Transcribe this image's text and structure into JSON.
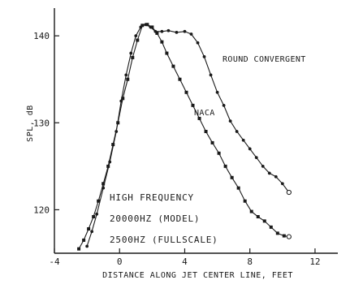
{
  "chart_data": {
    "type": "line",
    "xlabel": "DISTANCE ALONG JET CENTER LINE, FEET",
    "ylabel": "SPL, dB",
    "xlim": [
      -4,
      13
    ],
    "ylim": [
      115,
      143
    ],
    "x_ticks": [
      -4,
      0,
      4,
      8,
      12
    ],
    "y_ticks": [
      120,
      130,
      140
    ],
    "grid": false,
    "annotations": [
      "HIGH FREQUENCY",
      "20000HZ (MODEL)",
      "2500HZ (FULLSCALE)"
    ],
    "series": [
      {
        "name": "ROUND CONVERGENT",
        "marker": "circle",
        "x": [
          -2.0,
          -1.7,
          -1.4,
          -1.0,
          -0.6,
          -0.2,
          0.1,
          0.4,
          0.7,
          1.0,
          1.3,
          1.6,
          1.9,
          2.2,
          2.6,
          3.0,
          3.5,
          4.0,
          4.4,
          4.8,
          5.2,
          5.6,
          6.0,
          6.4,
          6.8,
          7.2,
          7.6,
          8.0,
          8.4,
          8.8,
          9.2,
          9.6,
          10.0,
          10.4
        ],
        "y": [
          115.8,
          117.5,
          119.5,
          122.5,
          125.5,
          129.0,
          132.5,
          135.5,
          138.0,
          140.0,
          141.0,
          141.3,
          141.0,
          140.5,
          140.5,
          140.6,
          140.4,
          140.5,
          140.2,
          139.2,
          137.6,
          135.5,
          133.5,
          132.0,
          130.2,
          129.0,
          128.0,
          127.0,
          126.0,
          125.0,
          124.2,
          123.8,
          123.0,
          122.0
        ]
      },
      {
        "name": "NACA",
        "marker": "square",
        "x": [
          -2.5,
          -2.2,
          -1.9,
          -1.6,
          -1.3,
          -1.0,
          -0.7,
          -0.4,
          -0.1,
          0.2,
          0.5,
          0.8,
          1.1,
          1.4,
          1.7,
          2.0,
          2.3,
          2.6,
          2.9,
          3.3,
          3.7,
          4.1,
          4.5,
          4.9,
          5.3,
          5.7,
          6.1,
          6.5,
          6.9,
          7.3,
          7.7,
          8.1,
          8.5,
          8.9,
          9.3,
          9.7,
          10.1,
          10.4
        ],
        "y": [
          115.5,
          116.5,
          117.8,
          119.2,
          121.0,
          123.0,
          125.0,
          127.5,
          130.0,
          132.8,
          135.0,
          137.5,
          139.5,
          141.2,
          141.3,
          141.0,
          140.3,
          139.3,
          138.0,
          136.5,
          135.0,
          133.5,
          132.0,
          130.5,
          129.0,
          127.7,
          126.5,
          125.0,
          123.7,
          122.5,
          121.0,
          119.8,
          119.2,
          118.7,
          118.0,
          117.3,
          117.0,
          116.9
        ]
      }
    ]
  }
}
